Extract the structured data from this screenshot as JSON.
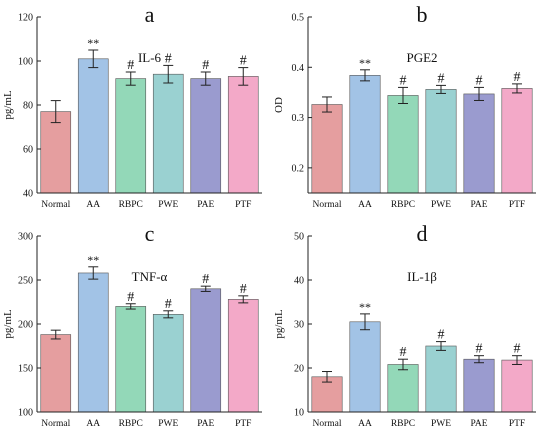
{
  "colors": {
    "axis": "#222222",
    "error_bar": "#222222",
    "bar_edge": "#555555"
  },
  "chart_data": [
    {
      "type": "bar",
      "panel_label": "a",
      "title": "IL-6",
      "ylabel": "pg/mL",
      "xlabel": "",
      "categories": [
        "Normal",
        "AA",
        "RBPC",
        "PWE",
        "PAE",
        "PTF"
      ],
      "values": [
        77,
        101,
        92,
        94,
        92,
        93
      ],
      "errors": [
        5,
        4,
        3,
        4,
        3,
        4
      ],
      "annotations": [
        "",
        "**",
        "#",
        "#",
        "#",
        "#"
      ],
      "colors": [
        "#e59e9f",
        "#a2c3e6",
        "#93d8b8",
        "#9ad1d1",
        "#9a9bcf",
        "#f3a9c8"
      ],
      "ylim": [
        40,
        120
      ],
      "yticks": [
        40,
        60,
        80,
        100,
        120
      ],
      "grid": false,
      "legend": "none"
    },
    {
      "type": "bar",
      "panel_label": "b",
      "title": "PGE2",
      "ylabel": "OD",
      "xlabel": "",
      "categories": [
        "Normal",
        "AA",
        "RBPC",
        "PWE",
        "PAE",
        "PTF"
      ],
      "values": [
        0.326,
        0.384,
        0.344,
        0.356,
        0.347,
        0.358
      ],
      "errors": [
        0.015,
        0.011,
        0.016,
        0.008,
        0.013,
        0.009
      ],
      "annotations": [
        "",
        "**",
        "#",
        "#",
        "#",
        "#"
      ],
      "colors": [
        "#e59e9f",
        "#a2c3e6",
        "#93d8b8",
        "#9ad1d1",
        "#9a9bcf",
        "#f3a9c8"
      ],
      "ylim": [
        0.15,
        0.5
      ],
      "yticks": [
        0.2,
        0.3,
        0.4,
        0.5
      ],
      "grid": false,
      "legend": "none"
    },
    {
      "type": "bar",
      "panel_label": "c",
      "title": "TNF-α",
      "ylabel": "pg/mL",
      "xlabel": "",
      "categories": [
        "Normal",
        "AA",
        "RBPC",
        "PWE",
        "PAE",
        "PTF"
      ],
      "values": [
        188,
        258,
        220,
        211,
        240,
        228
      ],
      "errors": [
        5,
        7,
        3,
        4,
        3,
        4
      ],
      "annotations": [
        "",
        "**",
        "#",
        "#",
        "#",
        "#"
      ],
      "colors": [
        "#e59e9f",
        "#a2c3e6",
        "#93d8b8",
        "#9ad1d1",
        "#9a9bcf",
        "#f3a9c8"
      ],
      "ylim": [
        100,
        300
      ],
      "yticks": [
        100,
        150,
        200,
        250,
        300
      ],
      "grid": false,
      "legend": "none"
    },
    {
      "type": "bar",
      "panel_label": "d",
      "title": "IL-1β",
      "ylabel": "pg/mL",
      "xlabel": "",
      "categories": [
        "Normal",
        "AA",
        "RBPC",
        "PWE",
        "PAE",
        "PTF"
      ],
      "values": [
        18,
        30.5,
        20.8,
        25,
        22,
        21.8
      ],
      "errors": [
        1.2,
        1.8,
        1.2,
        1.0,
        0.8,
        1.0
      ],
      "annotations": [
        "",
        "**",
        "#",
        "#",
        "#",
        "#"
      ],
      "colors": [
        "#e59e9f",
        "#a2c3e6",
        "#93d8b8",
        "#9ad1d1",
        "#9a9bcf",
        "#f3a9c8"
      ],
      "ylim": [
        10,
        50
      ],
      "yticks": [
        10,
        20,
        30,
        40,
        50
      ],
      "grid": false,
      "legend": "none"
    }
  ]
}
